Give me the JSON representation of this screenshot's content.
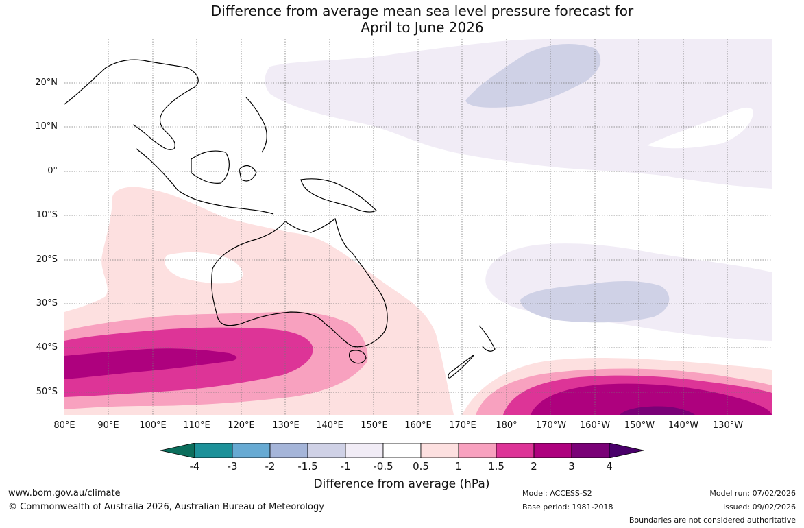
{
  "title": {
    "line1": "Difference from average mean sea level pressure forecast for",
    "line2": "April to June 2026"
  },
  "map": {
    "lat_labels": [
      "20°N",
      "10°N",
      "0°",
      "10°S",
      "20°S",
      "30°S",
      "40°S",
      "50°S"
    ],
    "lon_labels": [
      "80°E",
      "90°E",
      "100°E",
      "110°E",
      "120°E",
      "130°E",
      "140°E",
      "150°E",
      "160°E",
      "170°E",
      "180°",
      "170°W",
      "160°W",
      "150°W",
      "140°W",
      "130°W"
    ]
  },
  "legend": {
    "ticks": [
      "-4",
      "-3",
      "-2",
      "-1.5",
      "-1",
      "-0.5",
      "0.5",
      "1",
      "1.5",
      "2",
      "3",
      "4"
    ],
    "colors": [
      "#0b6e5c",
      "#1c9199",
      "#67aad3",
      "#a5b5d9",
      "#cfd1e6",
      "#f1ecf6",
      "#ffffff",
      "#fde0e0",
      "#f8a1bf",
      "#dd3497",
      "#ae017e",
      "#7a0177",
      "#49006a"
    ],
    "label": "Difference from average (hPa)"
  },
  "footer": {
    "website": "www.bom.gov.au/climate",
    "copyright": "© Commonwealth of Australia 2026, Australian Bureau of Meteorology",
    "model": "Model: ACCESS-S2",
    "base_period": "Base period: 1981-2018",
    "model_run": "Model run: 07/02/2026",
    "issued": "Issued: 09/02/2026",
    "disclaimer": "Boundaries are not considered authoritative"
  }
}
